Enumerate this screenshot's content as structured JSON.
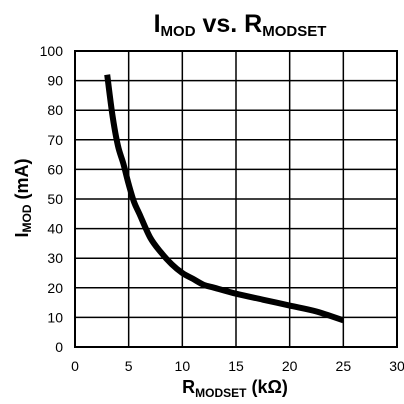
{
  "chart_data": {
    "type": "line",
    "title": {
      "main": "I",
      "main_sub": "MOD",
      "middle": " vs. R",
      "middle_sub": "MODSET"
    },
    "xlabel": {
      "main": "R",
      "sub": "MODSET",
      "rest": " (kΩ)"
    },
    "ylabel": {
      "main": "I",
      "sub": "MOD",
      "rest": " (mA)"
    },
    "xlim": [
      0,
      30
    ],
    "ylim": [
      0,
      100
    ],
    "x_ticks": [
      "0",
      "5",
      "10",
      "15",
      "20",
      "25",
      "30"
    ],
    "y_ticks": [
      "0",
      "10",
      "20",
      "30",
      "40",
      "50",
      "60",
      "70",
      "80",
      "90",
      "100"
    ],
    "grid": true,
    "series": [
      {
        "x": [
          3.0,
          3.5,
          4.0,
          4.5,
          5.0,
          5.5,
          6.0,
          7.0,
          8.0,
          9.0,
          10.0,
          11.0,
          12.0,
          13.0,
          15.0,
          17.5,
          20.0,
          22.5,
          25.0
        ],
        "y": [
          92,
          78,
          68,
          62,
          55,
          49,
          45,
          37,
          32,
          28,
          25,
          23,
          21,
          20,
          18,
          16,
          14,
          12,
          9
        ]
      }
    ],
    "colors": {
      "line": "#000000",
      "grid": "#000000",
      "background": "#ffffff"
    }
  }
}
